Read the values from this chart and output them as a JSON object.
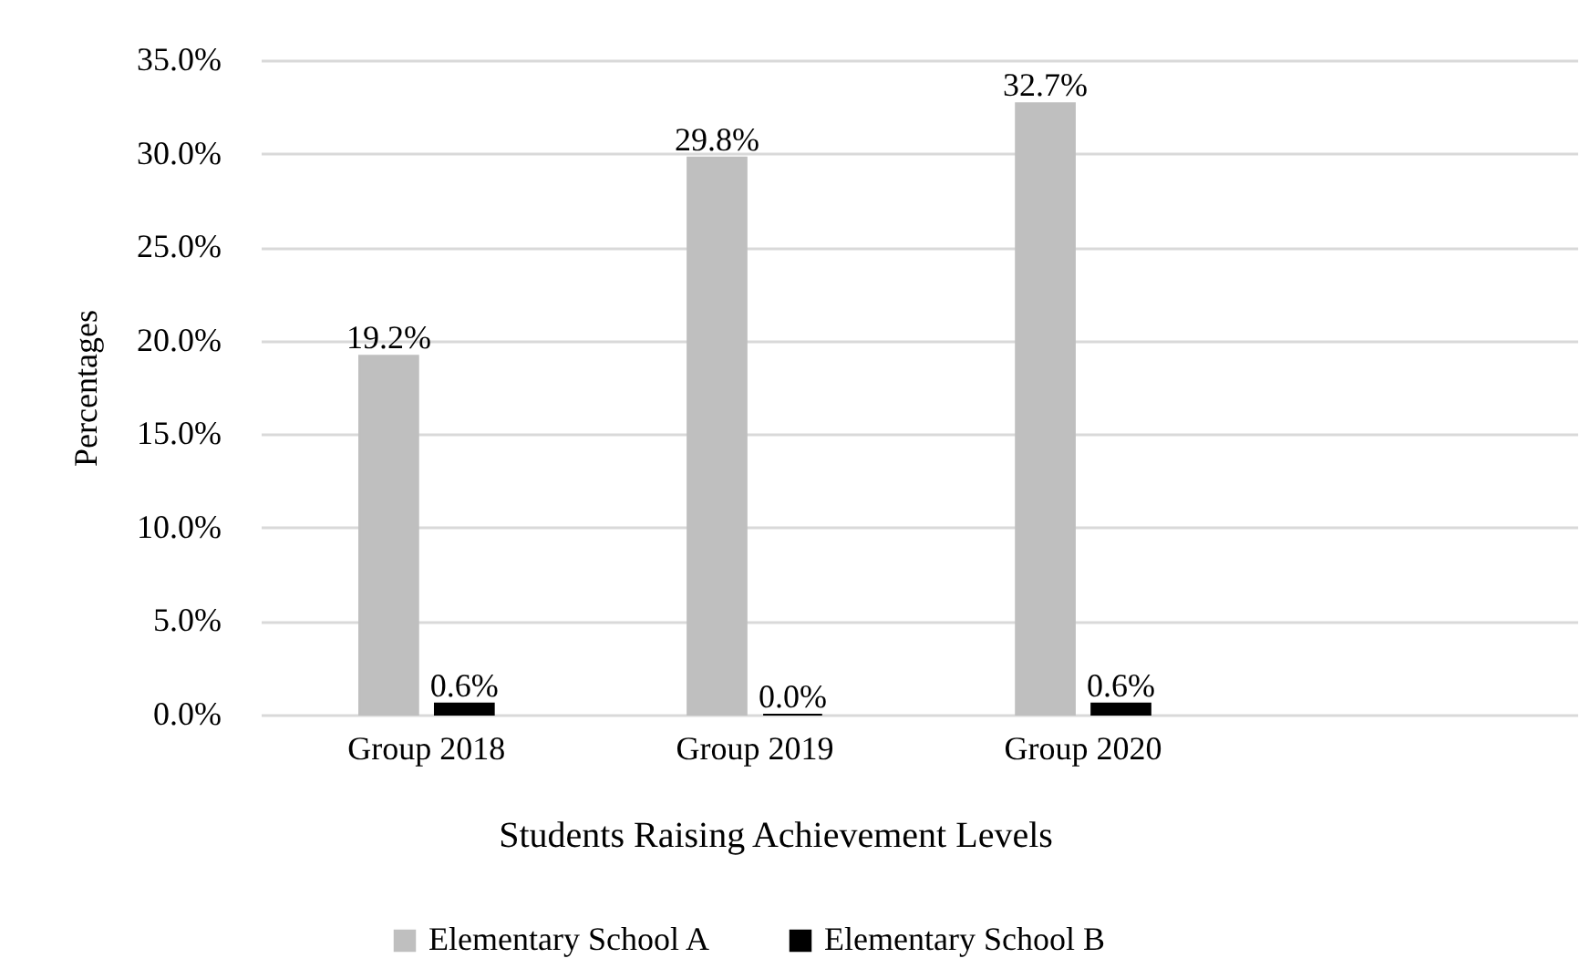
{
  "chart_data": {
    "type": "bar",
    "xlabel": "Students Raising Achievement Levels",
    "ylabel": "Percentages",
    "categories": [
      "Group 2018",
      "Group 2019",
      "Group 2020",
      null
    ],
    "series": [
      {
        "name": "Elementary School A",
        "color": "#bfbfbf",
        "values": [
          19.2,
          29.8,
          32.7,
          null
        ],
        "value_labels": [
          "19.2%",
          "29.8%",
          "32.7%",
          null
        ]
      },
      {
        "name": "Elementary School B",
        "color": "#000000",
        "values": [
          0.6,
          0.0,
          0.6,
          null
        ],
        "value_labels": [
          "0.6%",
          "0.0%",
          "0.6%",
          null
        ]
      }
    ],
    "ylim": [
      0,
      35
    ],
    "yticks": [
      {
        "value": 0,
        "label": "0.0%"
      },
      {
        "value": 5,
        "label": "5.0%"
      },
      {
        "value": 10,
        "label": "10.0%"
      },
      {
        "value": 15,
        "label": "15.0%"
      },
      {
        "value": 20,
        "label": "20.0%"
      },
      {
        "value": 25,
        "label": "25.0%"
      },
      {
        "value": 30,
        "label": "30.0%"
      },
      {
        "value": 35,
        "label": "35.0%"
      }
    ],
    "grid": "y",
    "legend": "bottom"
  }
}
